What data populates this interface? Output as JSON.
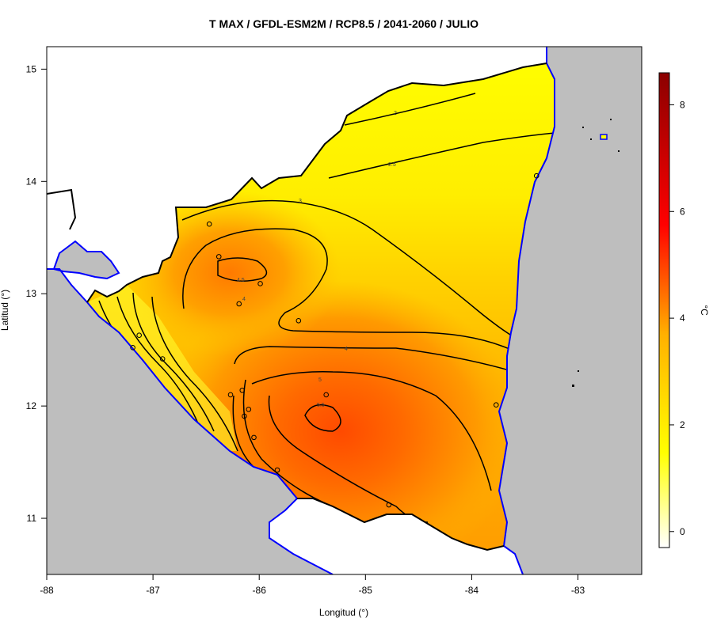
{
  "title": "T MAX / GFDL-ESM2M / RCP8.5 / 2041-2060 / JULIO",
  "xlabel": "Longitud (°)",
  "ylabel": "Latitud (°)",
  "x_ticks": [
    "-88",
    "-87",
    "-86",
    "-85",
    "-84",
    "-83"
  ],
  "y_ticks": [
    "11",
    "12",
    "13",
    "14",
    "15"
  ],
  "colorbar": {
    "unit": "°C",
    "ticks": [
      "0",
      "2",
      "4",
      "6",
      "8"
    ],
    "range": [
      -0.3,
      8.6
    ]
  },
  "contours": [
    {
      "label": "2"
    },
    {
      "label": "2.5"
    },
    {
      "label": "3"
    },
    {
      "label": "4"
    },
    {
      "label": "4.5"
    },
    {
      "label": "4"
    },
    {
      "label": "5"
    },
    {
      "label": "5.5"
    }
  ],
  "colors": {
    "background": "#bebebe",
    "coastline": "#0000ff",
    "border": "#000000",
    "low": "#ffff00",
    "mid": "#ffb000",
    "high": "#ff5000",
    "max": "#8b0000"
  },
  "chart_data": {
    "type": "heatmap",
    "variable": "T MAX",
    "xlim": [
      -88,
      -82.4
    ],
    "ylim": [
      10.5,
      15.2
    ],
    "stations": [
      {
        "lon": -86.47,
        "lat": 13.62
      },
      {
        "lon": -86.38,
        "lat": 13.33
      },
      {
        "lon": -85.99,
        "lat": 13.09
      },
      {
        "lon": -86.19,
        "lat": 12.91
      },
      {
        "lon": -85.63,
        "lat": 12.76
      },
      {
        "lon": -87.13,
        "lat": 12.63
      },
      {
        "lon": -87.19,
        "lat": 12.52
      },
      {
        "lon": -86.91,
        "lat": 12.42
      },
      {
        "lon": -86.27,
        "lat": 12.1
      },
      {
        "lon": -86.16,
        "lat": 12.14
      },
      {
        "lon": -85.37,
        "lat": 12.1
      },
      {
        "lon": -86.1,
        "lat": 11.97
      },
      {
        "lon": -86.14,
        "lat": 11.91
      },
      {
        "lon": -86.05,
        "lat": 11.72
      },
      {
        "lon": -85.83,
        "lat": 11.43
      },
      {
        "lon": -84.78,
        "lat": 11.12
      },
      {
        "lon": -83.77,
        "lat": 12.01
      },
      {
        "lon": -83.39,
        "lat": 14.05
      }
    ]
  }
}
